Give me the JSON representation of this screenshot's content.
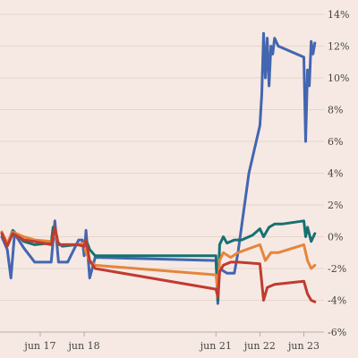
{
  "chart_data": {
    "type": "line",
    "title": "",
    "xlabel": "",
    "ylabel": "",
    "y_axis_position": "right",
    "ylim": [
      -6,
      14
    ],
    "yticks": [
      14,
      12,
      10,
      8,
      6,
      4,
      2,
      0,
      -2,
      -4,
      -6
    ],
    "ytick_labels": [
      "14%",
      "12%",
      "10%",
      "8%",
      "6%",
      "4%",
      "2%",
      "0%",
      "-2%",
      "-4%",
      "-6%"
    ],
    "xlim": [
      "2023-06-16T03:00",
      "2023-06-23T11:00"
    ],
    "xticks": [
      "2023-06-17",
      "2023-06-18",
      "2023-06-21",
      "2023-06-22",
      "2023-06-23"
    ],
    "xtick_labels": [
      "jun 17",
      "jun 18",
      "jun 21",
      "jun 22",
      "jun 23"
    ],
    "grid": "horizontal",
    "legend": "none",
    "series": [
      {
        "color": "#4366b0",
        "points": [
          [
            "2023-06-16T03:00",
            0.0
          ],
          [
            "2023-06-16T06:00",
            -0.8
          ],
          [
            "2023-06-16T08:00",
            -2.6
          ],
          [
            "2023-06-16T10:00",
            0.2
          ],
          [
            "2023-06-16T15:00",
            -0.7
          ],
          [
            "2023-06-16T21:00",
            -1.6
          ],
          [
            "2023-06-17T06:00",
            -1.6
          ],
          [
            "2023-06-17T08:00",
            1.0
          ],
          [
            "2023-06-17T10:00",
            -1.6
          ],
          [
            "2023-06-17T15:00",
            -1.6
          ],
          [
            "2023-06-17T21:00",
            -0.2
          ],
          [
            "2023-06-17T23:00",
            -0.2
          ],
          [
            "2023-06-18T00:00",
            -1.2
          ],
          [
            "2023-06-18T01:00",
            0.4
          ],
          [
            "2023-06-18T03:00",
            -2.6
          ],
          [
            "2023-06-18T06:00",
            -1.3
          ],
          [
            "2023-06-21T00:00",
            -1.5
          ],
          [
            "2023-06-21T01:00",
            -4.2
          ],
          [
            "2023-06-21T02:00",
            -2.0
          ],
          [
            "2023-06-21T06:00",
            -2.3
          ],
          [
            "2023-06-21T10:00",
            -2.3
          ],
          [
            "2023-06-21T12:00",
            -1.0
          ],
          [
            "2023-06-21T18:00",
            4.0
          ],
          [
            "2023-06-22T00:00",
            7.0
          ],
          [
            "2023-06-22T01:00",
            9.0
          ],
          [
            "2023-06-22T02:00",
            12.8
          ],
          [
            "2023-06-22T03:00",
            10.0
          ],
          [
            "2023-06-22T04:00",
            12.5
          ],
          [
            "2023-06-22T05:00",
            9.5
          ],
          [
            "2023-06-22T06:00",
            12.0
          ],
          [
            "2023-06-22T07:00",
            11.5
          ],
          [
            "2023-06-22T08:00",
            12.5
          ],
          [
            "2023-06-22T10:00",
            12.0
          ],
          [
            "2023-06-23T00:00",
            11.3
          ],
          [
            "2023-06-23T01:00",
            6.0
          ],
          [
            "2023-06-23T02:00",
            10.5
          ],
          [
            "2023-06-23T03:00",
            9.5
          ],
          [
            "2023-06-23T04:00",
            12.3
          ],
          [
            "2023-06-23T05:00",
            11.5
          ],
          [
            "2023-06-23T06:00",
            12.2
          ]
        ]
      },
      {
        "color": "#167170",
        "points": [
          [
            "2023-06-16T03:00",
            0.3
          ],
          [
            "2023-06-16T06:00",
            -0.5
          ],
          [
            "2023-06-16T09:00",
            0.4
          ],
          [
            "2023-06-16T15:00",
            -0.3
          ],
          [
            "2023-06-16T21:00",
            -0.5
          ],
          [
            "2023-06-17T06:00",
            -0.4
          ],
          [
            "2023-06-17T07:00",
            0.6
          ],
          [
            "2023-06-17T09:00",
            -0.3
          ],
          [
            "2023-06-17T12:00",
            -0.6
          ],
          [
            "2023-06-17T20:00",
            -0.5
          ],
          [
            "2023-06-17T22:00",
            -0.5
          ],
          [
            "2023-06-18T00:00",
            -0.5
          ],
          [
            "2023-06-18T01:00",
            -0.2
          ],
          [
            "2023-06-18T03:00",
            -0.8
          ],
          [
            "2023-06-18T06:00",
            -1.2
          ],
          [
            "2023-06-21T00:00",
            -1.2
          ],
          [
            "2023-06-21T01:00",
            -4.0
          ],
          [
            "2023-06-21T02:00",
            -0.5
          ],
          [
            "2023-06-21T04:00",
            0.0
          ],
          [
            "2023-06-21T06:00",
            -0.4
          ],
          [
            "2023-06-21T10:00",
            -0.2
          ],
          [
            "2023-06-21T14:00",
            -0.2
          ],
          [
            "2023-06-21T20:00",
            0.1
          ],
          [
            "2023-06-22T00:00",
            0.5
          ],
          [
            "2023-06-22T02:00",
            0.0
          ],
          [
            "2023-06-22T05:00",
            0.6
          ],
          [
            "2023-06-22T08:00",
            0.8
          ],
          [
            "2023-06-22T12:00",
            0.8
          ],
          [
            "2023-06-23T00:00",
            1.0
          ],
          [
            "2023-06-23T01:00",
            0.0
          ],
          [
            "2023-06-23T02:00",
            0.6
          ],
          [
            "2023-06-23T04:00",
            -0.3
          ],
          [
            "2023-06-23T06:00",
            0.2
          ]
        ]
      },
      {
        "color": "#e6853b",
        "points": [
          [
            "2023-06-16T03:00",
            0.3
          ],
          [
            "2023-06-16T06:00",
            -0.4
          ],
          [
            "2023-06-16T09:00",
            0.3
          ],
          [
            "2023-06-16T15:00",
            0.0
          ],
          [
            "2023-06-16T21:00",
            -0.2
          ],
          [
            "2023-06-17T06:00",
            -0.3
          ],
          [
            "2023-06-17T08:00",
            0.2
          ],
          [
            "2023-06-17T10:00",
            -0.5
          ],
          [
            "2023-06-17T20:00",
            -0.5
          ],
          [
            "2023-06-18T00:00",
            -0.4
          ],
          [
            "2023-06-18T01:00",
            -1.0
          ],
          [
            "2023-06-18T03:00",
            -1.5
          ],
          [
            "2023-06-18T06:00",
            -1.8
          ],
          [
            "2023-06-21T00:00",
            -2.4
          ],
          [
            "2023-06-21T01:00",
            -3.4
          ],
          [
            "2023-06-21T02:00",
            -1.5
          ],
          [
            "2023-06-21T04:00",
            -1.0
          ],
          [
            "2023-06-21T08:00",
            -1.3
          ],
          [
            "2023-06-21T12:00",
            -1.0
          ],
          [
            "2023-06-22T00:00",
            -0.5
          ],
          [
            "2023-06-22T03:00",
            -1.5
          ],
          [
            "2023-06-22T06:00",
            -1.0
          ],
          [
            "2023-06-22T10:00",
            -1.0
          ],
          [
            "2023-06-23T00:00",
            -0.5
          ],
          [
            "2023-06-23T02:00",
            -1.5
          ],
          [
            "2023-06-23T04:00",
            -2.0
          ],
          [
            "2023-06-23T06:00",
            -1.8
          ]
        ]
      },
      {
        "color": "#c13a30",
        "points": [
          [
            "2023-06-16T03:00",
            0.2
          ],
          [
            "2023-06-16T06:00",
            -0.6
          ],
          [
            "2023-06-16T09:00",
            0.2
          ],
          [
            "2023-06-16T15:00",
            -0.2
          ],
          [
            "2023-06-16T21:00",
            -0.3
          ],
          [
            "2023-06-17T06:00",
            -0.5
          ],
          [
            "2023-06-17T08:00",
            0.6
          ],
          [
            "2023-06-17T10:00",
            -0.5
          ],
          [
            "2023-06-17T20:00",
            -0.5
          ],
          [
            "2023-06-18T00:00",
            -0.6
          ],
          [
            "2023-06-18T01:00",
            -0.2
          ],
          [
            "2023-06-18T03:00",
            -1.5
          ],
          [
            "2023-06-18T06:00",
            -2.0
          ],
          [
            "2023-06-21T00:00",
            -3.3
          ],
          [
            "2023-06-21T01:00",
            -3.8
          ],
          [
            "2023-06-21T02:00",
            -2.2
          ],
          [
            "2023-06-21T04:00",
            -1.8
          ],
          [
            "2023-06-21T08:00",
            -1.6
          ],
          [
            "2023-06-21T12:00",
            -1.6
          ],
          [
            "2023-06-22T00:00",
            -1.7
          ],
          [
            "2023-06-22T02:00",
            -4.0
          ],
          [
            "2023-06-22T04:00",
            -3.2
          ],
          [
            "2023-06-22T08:00",
            -3.0
          ],
          [
            "2023-06-23T00:00",
            -2.8
          ],
          [
            "2023-06-23T02:00",
            -3.6
          ],
          [
            "2023-06-23T04:00",
            -4.0
          ],
          [
            "2023-06-23T06:00",
            -4.1
          ]
        ]
      }
    ]
  }
}
